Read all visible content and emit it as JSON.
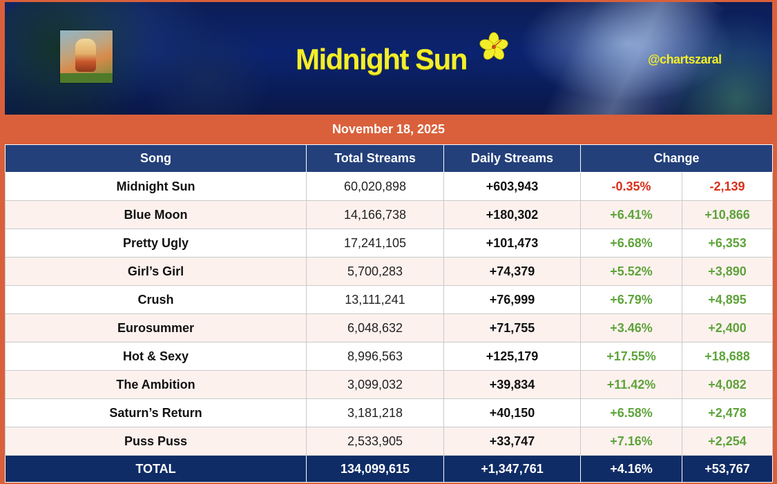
{
  "header": {
    "title": "Midnight Sun",
    "handle": "@chartszaral",
    "date": "November 18, 2025"
  },
  "table": {
    "columns": {
      "song": "Song",
      "total_streams": "Total Streams",
      "daily_streams": "Daily Streams",
      "change": "Change"
    },
    "rows": [
      {
        "song": "Midnight Sun",
        "total": "60,020,898",
        "daily": "+603,943",
        "pct": "-0.35%",
        "delta": "-2,139",
        "dir": "neg"
      },
      {
        "song": "Blue Moon",
        "total": "14,166,738",
        "daily": "+180,302",
        "pct": "+6.41%",
        "delta": "+10,866",
        "dir": "pos"
      },
      {
        "song": "Pretty Ugly",
        "total": "17,241,105",
        "daily": "+101,473",
        "pct": "+6.68%",
        "delta": "+6,353",
        "dir": "pos"
      },
      {
        "song": "Girl’s Girl",
        "total": "5,700,283",
        "daily": "+74,379",
        "pct": "+5.52%",
        "delta": "+3,890",
        "dir": "pos"
      },
      {
        "song": "Crush",
        "total": "13,111,241",
        "daily": "+76,999",
        "pct": "+6.79%",
        "delta": "+4,895",
        "dir": "pos"
      },
      {
        "song": "Eurosummer",
        "total": "6,048,632",
        "daily": "+71,755",
        "pct": "+3.46%",
        "delta": "+2,400",
        "dir": "pos"
      },
      {
        "song": "Hot & Sexy",
        "total": "8,996,563",
        "daily": "+125,179",
        "pct": "+17.55%",
        "delta": "+18,688",
        "dir": "pos"
      },
      {
        "song": "The Ambition",
        "total": "3,099,032",
        "daily": "+39,834",
        "pct": "+11.42%",
        "delta": "+4,082",
        "dir": "pos"
      },
      {
        "song": "Saturn’s Return",
        "total": "3,181,218",
        "daily": "+40,150",
        "pct": "+6.58%",
        "delta": "+2,478",
        "dir": "pos"
      },
      {
        "song": "Puss Puss",
        "total": "2,533,905",
        "daily": "+33,747",
        "pct": "+7.16%",
        "delta": "+2,254",
        "dir": "pos"
      }
    ],
    "footer": {
      "label": "TOTAL",
      "total": "134,099,615",
      "daily": "+1,347,761",
      "pct": "+4.16%",
      "delta": "+53,767"
    }
  },
  "colors": {
    "frame": "#d9603b",
    "header_bg": "#23407a",
    "footer_bg": "#0f2c66",
    "positive": "#5ea33a",
    "negative": "#d8301c",
    "title_yellow": "#f3ee2a"
  },
  "icons": {
    "flower": "hibiscus-icon",
    "cover": "album-cover-image"
  }
}
